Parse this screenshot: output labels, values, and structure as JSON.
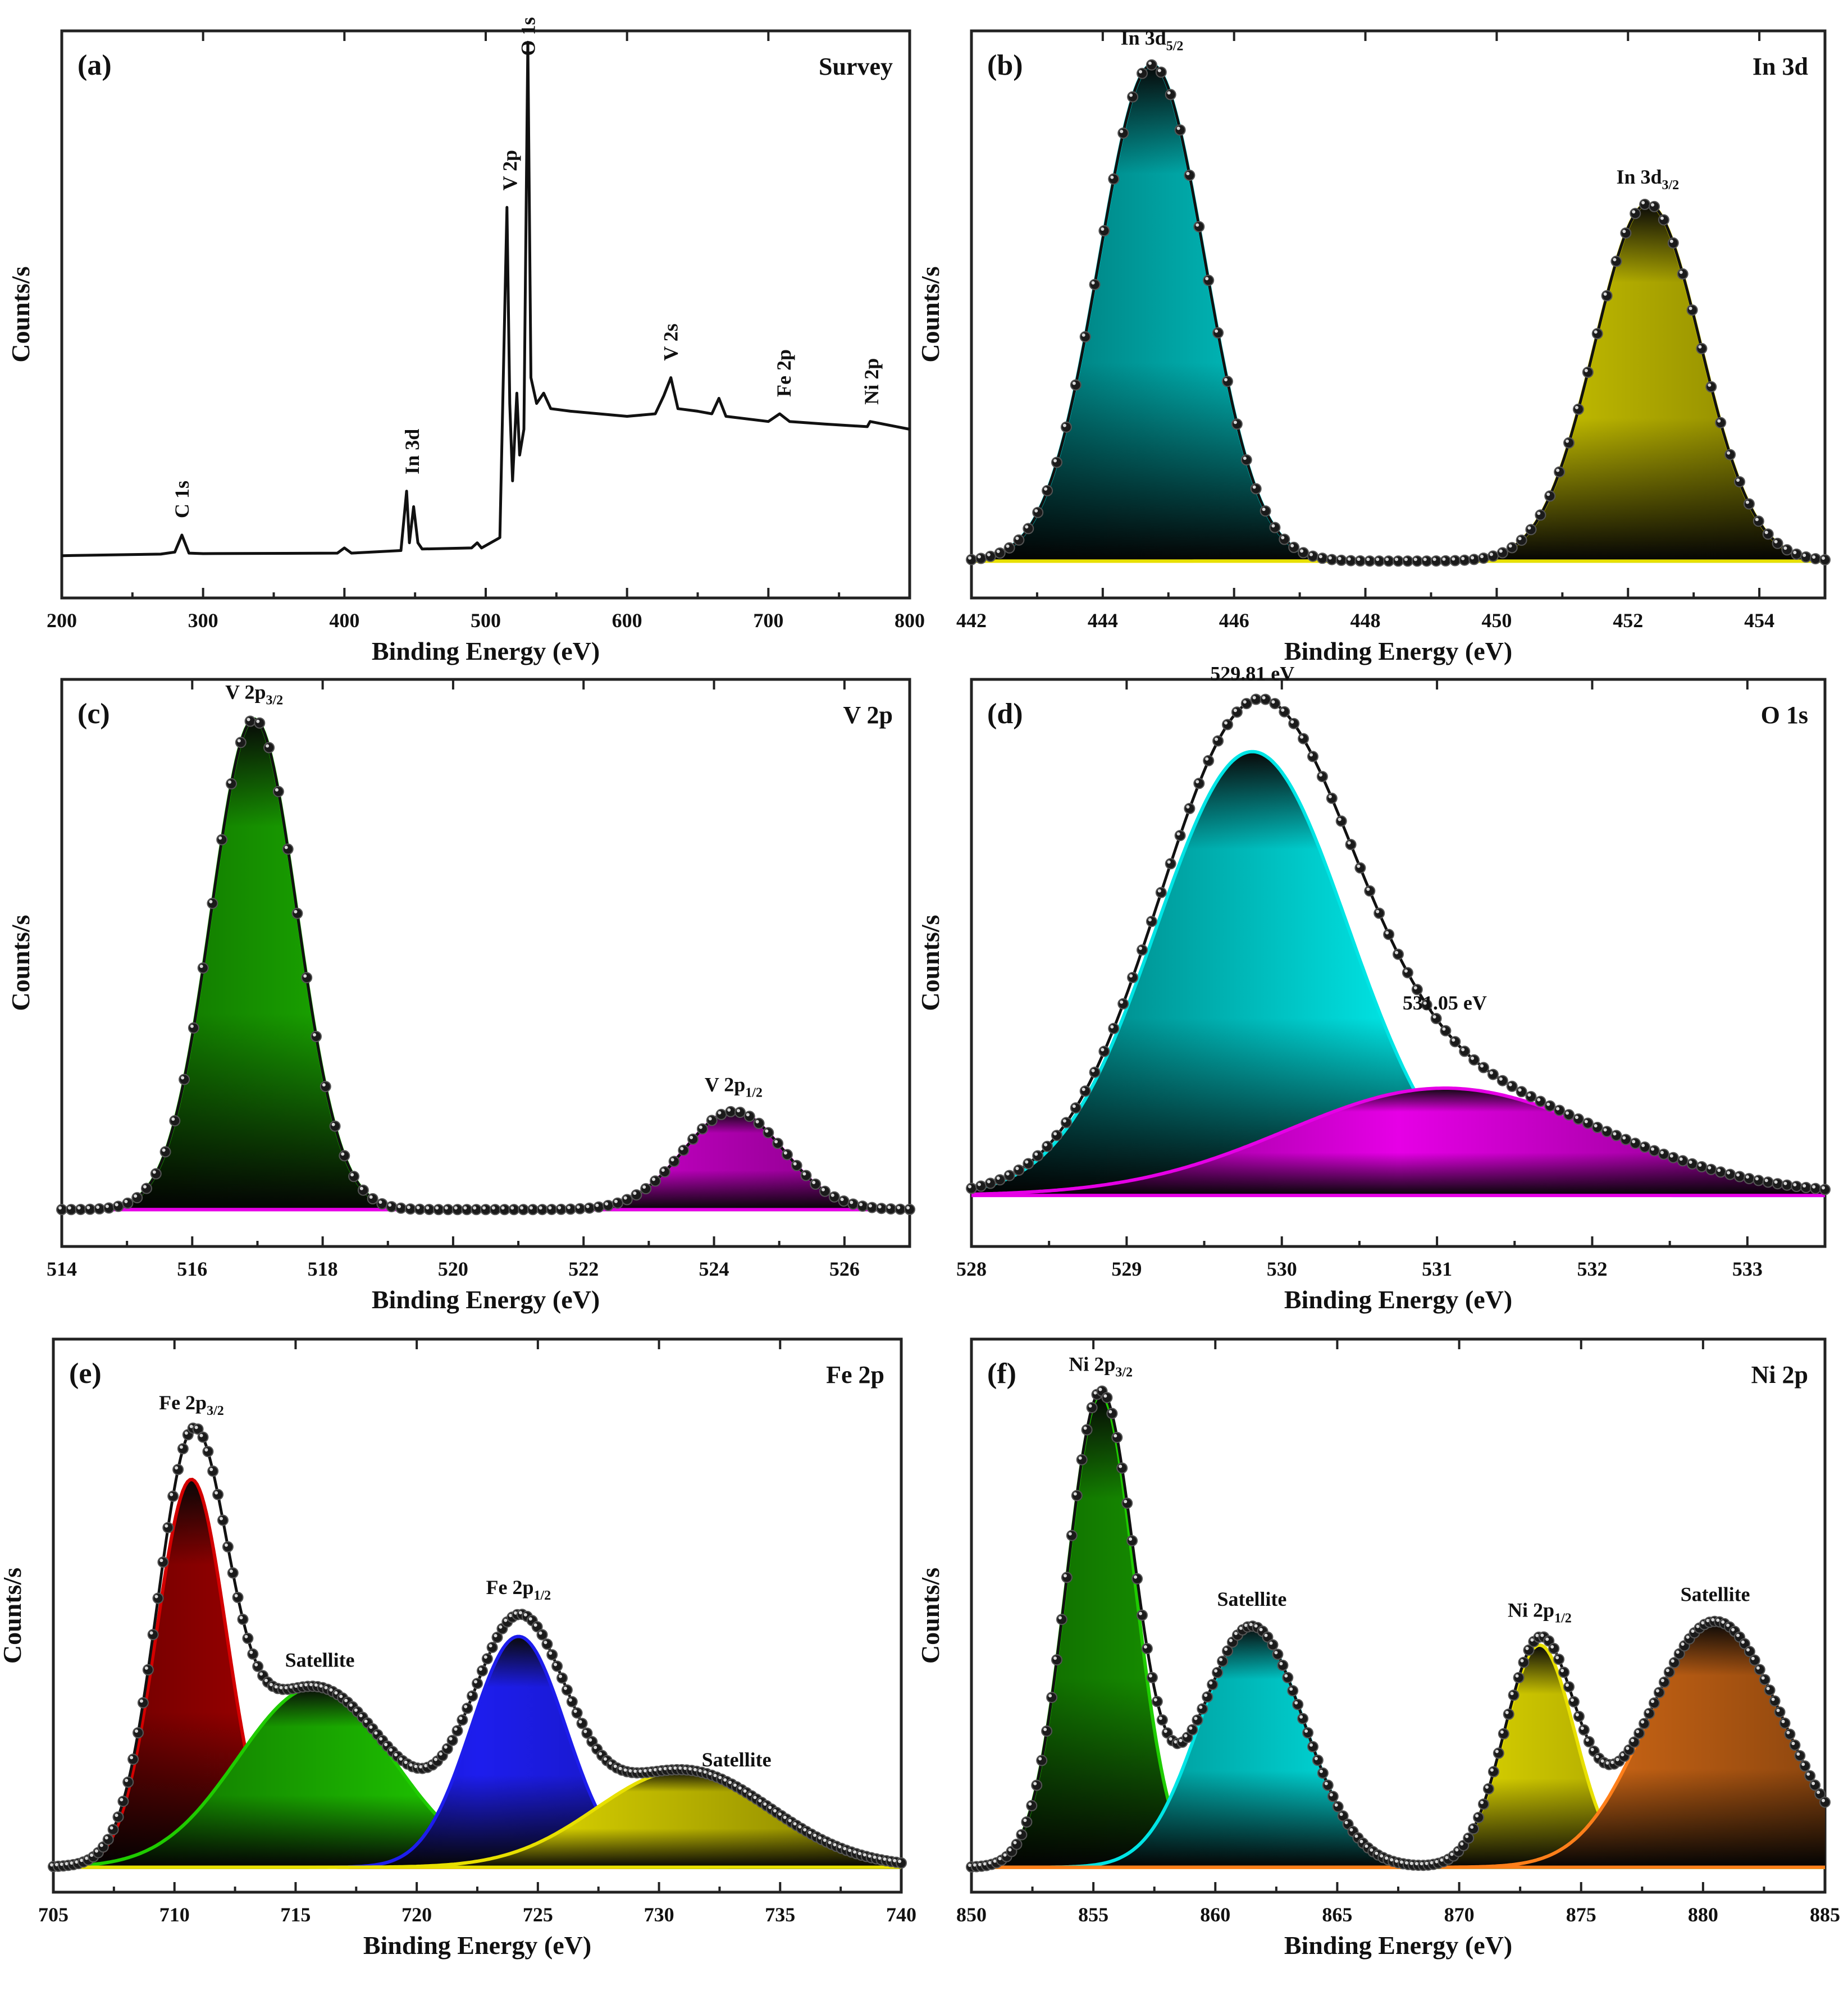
{
  "figure": {
    "panels": 6,
    "colors": {
      "cyan": "#00e5e5",
      "yellow": "#e8e000",
      "green": "#1fcc00",
      "magenta": "#e600e6",
      "red": "#d40000",
      "blue": "#1d1ded",
      "orange": "#ff7f1a",
      "black": "#111111"
    }
  },
  "chart_data": [
    {
      "id": "a",
      "type": "line",
      "label": "(a)",
      "title": "Survey",
      "xlabel": "Binding Energy (eV)",
      "ylabel": "Counts/s",
      "xlim": [
        200,
        800
      ],
      "ylim": [
        0,
        100
      ],
      "xticks": [
        200,
        300,
        400,
        500,
        600,
        700,
        800
      ],
      "xtick_labels": [
        "200",
        "300",
        "400",
        "500",
        "600",
        "700",
        "800"
      ],
      "series": [
        {
          "name": "survey",
          "x": [
            200,
            270,
            280,
            285,
            290,
            300,
            395,
            400,
            405,
            440,
            444,
            446,
            449,
            452,
            455,
            490,
            494,
            497,
            510,
            515,
            517,
            519,
            522,
            524,
            527,
            529.8,
            532,
            536,
            541,
            546,
            560,
            600,
            620,
            626,
            631,
            636,
            650,
            660,
            665,
            670,
            700,
            708,
            715,
            740,
            770,
            772,
            800
          ],
          "y": [
            0.5,
            0.8,
            1.2,
            4.5,
            1.0,
            0.9,
            1.0,
            2.0,
            1.0,
            1.5,
            13.0,
            3.0,
            10.0,
            3.0,
            1.8,
            2.0,
            3.0,
            2.0,
            4.0,
            68.0,
            30.0,
            15.0,
            32.0,
            20.0,
            25.0,
            100.0,
            35.0,
            30.0,
            32.0,
            29.0,
            28.5,
            27.5,
            28.0,
            31.5,
            35.0,
            29.0,
            28.5,
            28.0,
            31.0,
            27.5,
            26.5,
            28.0,
            26.5,
            26.0,
            25.5,
            26.5,
            25.0
          ]
        }
      ],
      "annotations": [
        {
          "text": "C 1s",
          "x": 285
        },
        {
          "text": "In 3d",
          "x": 448
        },
        {
          "text": "V 2p",
          "x": 517
        },
        {
          "text": "O 1s",
          "x": 530
        },
        {
          "text": "V 2s",
          "x": 631
        },
        {
          "text": "Fe 2p",
          "x": 711
        },
        {
          "text": "Ni 2p",
          "x": 773
        }
      ]
    },
    {
      "id": "b",
      "type": "area",
      "label": "(b)",
      "title": "In 3d",
      "xlabel": "Binding Energy (eV)",
      "ylabel": "Counts/s",
      "xlim": [
        442,
        455
      ],
      "ylim": [
        0,
        100
      ],
      "xticks": [
        442,
        444,
        446,
        448,
        450,
        452,
        454
      ],
      "xtick_labels": [
        "442",
        "444",
        "446",
        "448",
        "450",
        "452",
        "454"
      ],
      "components": [
        {
          "name": "In 3d5/2",
          "center": 444.75,
          "height": 100,
          "fwhm": 1.9,
          "color": "#00e5e5"
        },
        {
          "name": "In 3d3/2",
          "center": 452.3,
          "height": 72,
          "fwhm": 1.9,
          "color": "#e8e000"
        }
      ],
      "peak_labels": [
        {
          "main": "In 3d",
          "sub": "5/2",
          "x": 444.75
        },
        {
          "main": "In 3d",
          "sub": "3/2",
          "x": 452.3
        }
      ]
    },
    {
      "id": "c",
      "type": "area",
      "label": "(c)",
      "title": "V 2p",
      "xlabel": "Binding Energy (eV)",
      "ylabel": "Counts/s",
      "xlim": [
        514,
        527
      ],
      "ylim": [
        0,
        100
      ],
      "xticks": [
        514,
        516,
        518,
        520,
        522,
        524,
        526
      ],
      "xtick_labels": [
        "514",
        "516",
        "518",
        "520",
        "522",
        "524",
        "526"
      ],
      "components": [
        {
          "name": "V 2p3/2",
          "center": 516.95,
          "height": 100,
          "fwhm": 1.55,
          "color": "#1fcc00"
        },
        {
          "name": "V 2p1/2",
          "center": 524.3,
          "height": 20,
          "fwhm": 1.8,
          "color": "#e600e6"
        }
      ],
      "peak_labels": [
        {
          "main": "V 2p",
          "sub": "3/2",
          "x": 516.95
        },
        {
          "main": "V 2p",
          "sub": "1/2",
          "x": 524.3
        }
      ]
    },
    {
      "id": "d",
      "type": "area",
      "label": "(d)",
      "title": "O 1s",
      "xlabel": "Binding Energy (eV)",
      "ylabel": "Counts/s",
      "xlim": [
        528,
        533.5
      ],
      "ylim": [
        0,
        100
      ],
      "xticks": [
        528,
        529,
        530,
        531,
        532,
        533
      ],
      "xtick_labels": [
        "528",
        "529",
        "530",
        "531",
        "532",
        "533"
      ],
      "components": [
        {
          "name": "529.81 eV",
          "center": 529.81,
          "height": 91,
          "fwhm": 1.45,
          "color": "#00e5e5"
        },
        {
          "name": "531.05 eV",
          "center": 531.05,
          "height": 22,
          "fwhm": 2.4,
          "color": "#e600e6"
        }
      ],
      "peak_labels": [
        {
          "main": "529.81 eV",
          "sub": "",
          "x": 529.81
        },
        {
          "main": "531.05 eV",
          "sub": "",
          "x": 531.05
        }
      ]
    },
    {
      "id": "e",
      "type": "area",
      "label": "(e)",
      "title": "Fe 2p",
      "xlabel": "Binding Energy (eV)",
      "ylabel": "Counts/s",
      "xlim": [
        705,
        740
      ],
      "ylim": [
        0,
        100
      ],
      "xticks": [
        705,
        710,
        715,
        720,
        725,
        730,
        735,
        740
      ],
      "xtick_labels": [
        "705",
        "710",
        "715",
        "720",
        "725",
        "730",
        "735",
        "740"
      ],
      "components": [
        {
          "name": "Fe 2p3/2",
          "center": 710.7,
          "height": 84,
          "fwhm": 3.4,
          "color": "#d40000"
        },
        {
          "name": "Satellite",
          "center": 715.8,
          "height": 39,
          "fwhm": 7.5,
          "color": "#1fcc00"
        },
        {
          "name": "Fe 2p1/2",
          "center": 724.2,
          "height": 50,
          "fwhm": 4.6,
          "color": "#1d1ded"
        },
        {
          "name": "Satellite",
          "center": 731.0,
          "height": 21,
          "fwhm": 8.5,
          "color": "#e8e000"
        }
      ],
      "peak_labels": [
        {
          "main": "Fe 2p",
          "sub": "3/2",
          "x": 710.7
        },
        {
          "main": "Satellite",
          "sub": "",
          "x": 716.0
        },
        {
          "main": "Fe 2p",
          "sub": "1/2",
          "x": 724.2
        },
        {
          "main": "Satellite",
          "sub": "",
          "x": 733.2
        }
      ]
    },
    {
      "id": "f",
      "type": "area",
      "label": "(f)",
      "title": "Ni 2p",
      "xlabel": "Binding Energy (eV)",
      "ylabel": "Counts/s",
      "xlim": [
        850,
        885
      ],
      "ylim": [
        0,
        100
      ],
      "xticks": [
        850,
        855,
        860,
        865,
        870,
        875,
        880,
        885
      ],
      "xtick_labels": [
        "850",
        "855",
        "860",
        "865",
        "870",
        "875",
        "880",
        "885"
      ],
      "components": [
        {
          "name": "Ni 2p3/2",
          "center": 855.3,
          "height": 100,
          "fwhm": 3.3,
          "color": "#1fcc00"
        },
        {
          "name": "Satellite",
          "center": 861.5,
          "height": 51,
          "fwhm": 5.0,
          "color": "#00e5e5"
        },
        {
          "name": "Ni 2p1/2",
          "center": 873.3,
          "height": 47,
          "fwhm": 3.4,
          "color": "#e8e000"
        },
        {
          "name": "Satellite",
          "center": 880.5,
          "height": 52,
          "fwhm": 6.5,
          "color": "#ff7f1a"
        }
      ],
      "peak_labels": [
        {
          "main": "Ni 2p",
          "sub": "3/2",
          "x": 855.3
        },
        {
          "main": "Satellite",
          "sub": "",
          "x": 861.5
        },
        {
          "main": "Ni 2p",
          "sub": "1/2",
          "x": 873.3
        },
        {
          "main": "Satellite",
          "sub": "",
          "x": 880.5
        }
      ]
    }
  ]
}
